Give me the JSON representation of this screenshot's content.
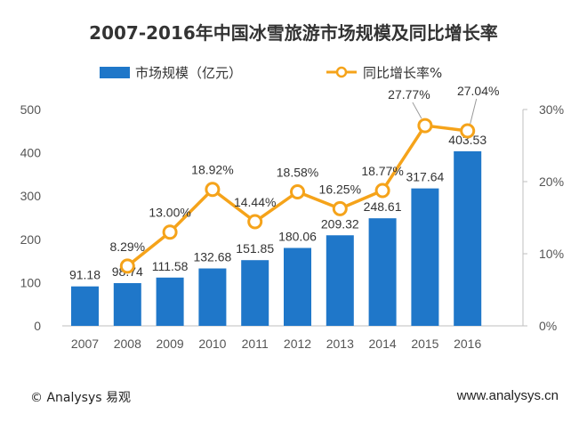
{
  "chart_data": {
    "type": "bar+line",
    "title": "2007-2016年中国冰雪旅游市场规模及同比增长率",
    "categories": [
      "2007",
      "2008",
      "2009",
      "2010",
      "2011",
      "2012",
      "2013",
      "2014",
      "2015",
      "2016"
    ],
    "series": [
      {
        "name": "市场规模（亿元）",
        "type": "bar",
        "axis": "left",
        "values": [
          91.18,
          98.74,
          111.58,
          132.68,
          151.85,
          180.06,
          209.32,
          248.61,
          317.64,
          403.53
        ],
        "labels": [
          "91.18",
          "98.74",
          "111.58",
          "132.68",
          "151.85",
          "180.06",
          "209.32",
          "248.61",
          "317.64",
          "403.53"
        ]
      },
      {
        "name": "同比增长率%",
        "type": "line",
        "axis": "right",
        "values": [
          null,
          8.29,
          13.0,
          18.92,
          14.44,
          18.58,
          16.25,
          18.77,
          27.77,
          27.04
        ],
        "labels": [
          "",
          "8.29%",
          "13.00%",
          "18.92%",
          "14.44%",
          "18.58%",
          "16.25%",
          "18.77%",
          "27.77%",
          "27.04%"
        ]
      }
    ],
    "y_left": {
      "ylim": [
        0,
        500
      ],
      "ticks": [
        "0",
        "100",
        "200",
        "300",
        "400",
        "500"
      ]
    },
    "y_right": {
      "ylim": [
        0,
        30
      ],
      "ticks": [
        "0%",
        "10%",
        "20%",
        "30%"
      ]
    },
    "legend_position": "top-center",
    "grid": false
  },
  "colors": {
    "bar": "#1F77C9",
    "line": "#F5A31A",
    "marker_fill": "#FFFFFF",
    "axis": "#BFBFBF"
  },
  "footer": {
    "copyright": "© Analysys 易观",
    "website": "www.analysys.cn"
  }
}
